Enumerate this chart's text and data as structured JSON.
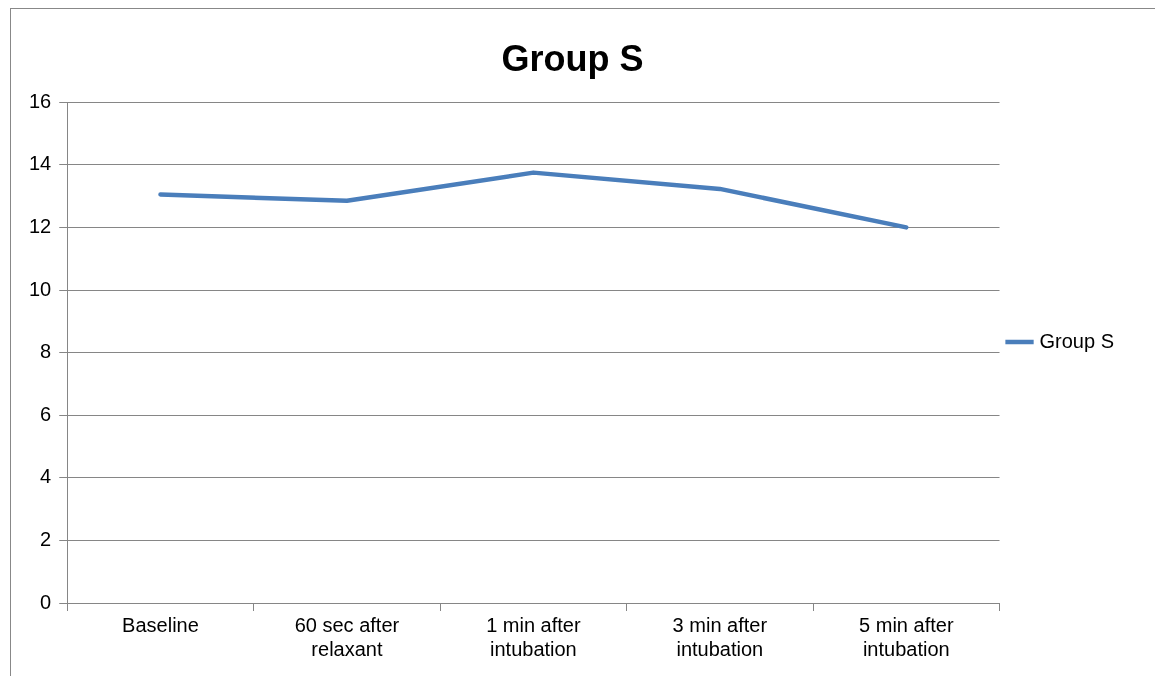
{
  "chart_data": {
    "type": "line",
    "title": "Group S",
    "categories": [
      "Baseline",
      "60 sec after relaxant",
      "1 min after intubation",
      "3 min after intubation",
      "5 min after intubation"
    ],
    "series": [
      {
        "name": "Group S",
        "color": "#4a7ebb",
        "values": [
          13.05,
          12.85,
          13.75,
          13.23,
          12.0
        ]
      }
    ],
    "ylim": [
      0,
      16
    ],
    "yticks": [
      0,
      2,
      4,
      6,
      8,
      10,
      12,
      14,
      16
    ],
    "grid": "y",
    "legend": "right",
    "marker": "none"
  }
}
